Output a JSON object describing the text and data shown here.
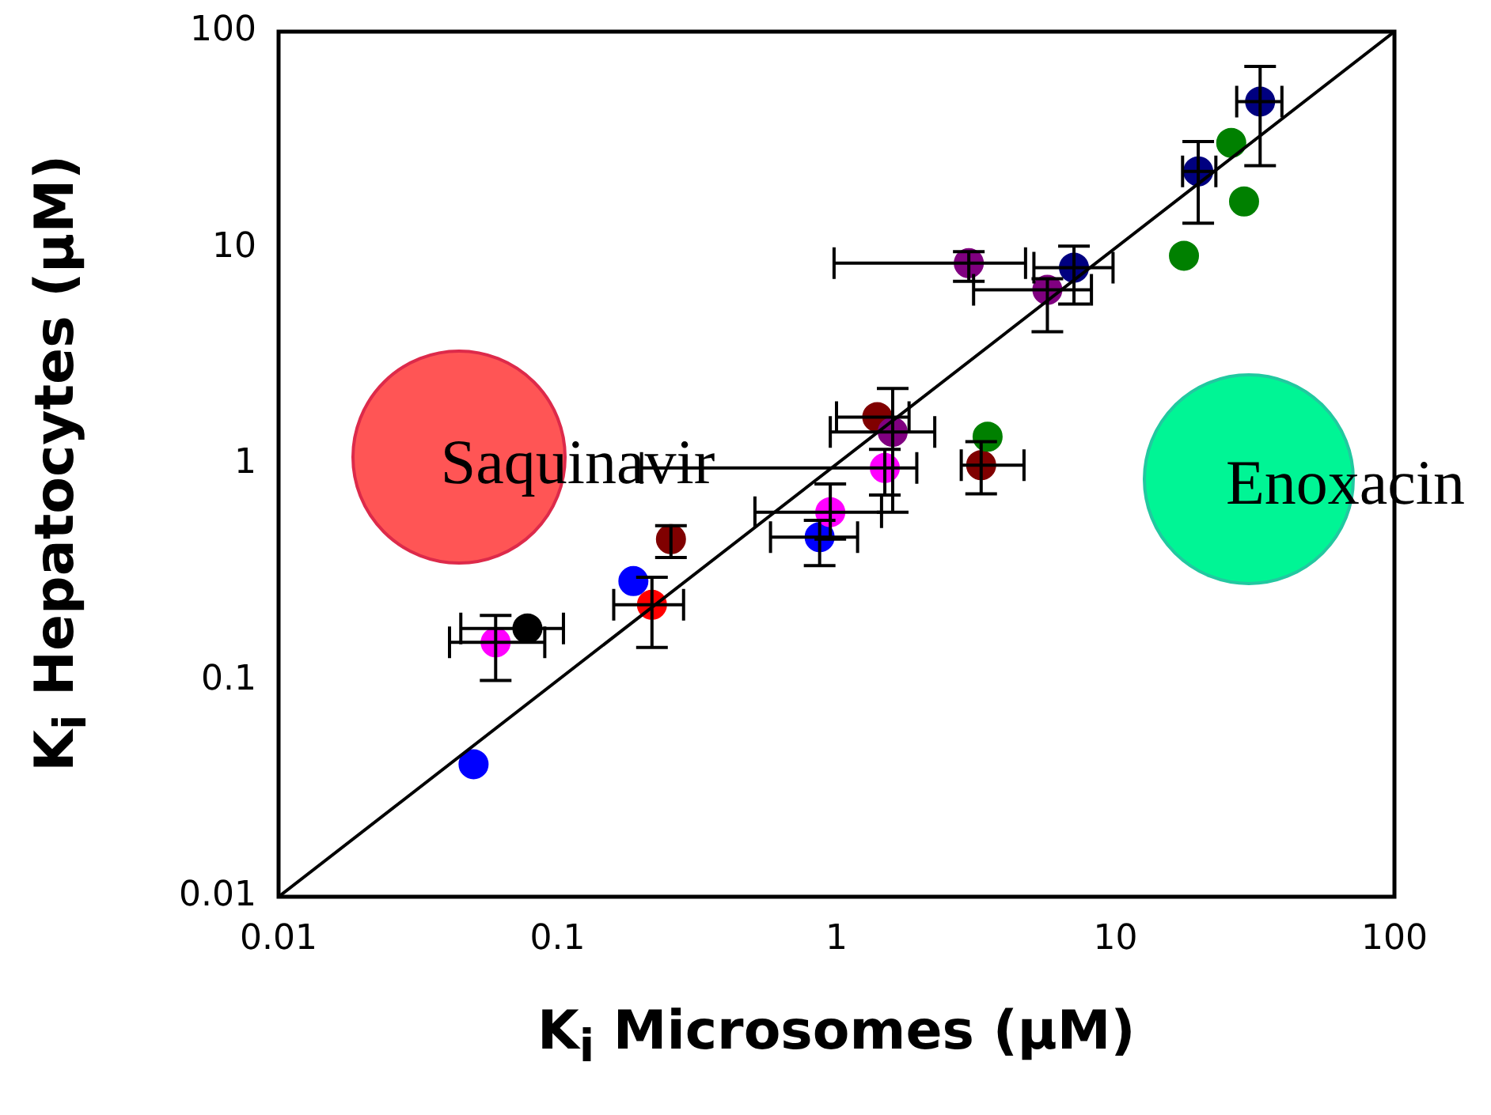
{
  "chart_data": {
    "type": "scatter",
    "xlabel": "K$_{i}$ Microsomes (µM)",
    "ylabel": "K$_{i}$ Hepatocytes (µM)",
    "log": "xy",
    "grid": false,
    "legend": false,
    "xlim": [
      0.01,
      100
    ],
    "ylim": [
      0.01,
      100
    ],
    "xticks": [
      0.01,
      0.1,
      1,
      10,
      100
    ],
    "yticks": [
      0.01,
      0.1,
      1,
      10,
      100
    ],
    "annotations": [
      "Saquinavir",
      "Enoxacin"
    ],
    "series": [
      {
        "type": "line",
        "x": [
          0.01,
          100
        ],
        "values": [
          0.01,
          100
        ],
        "color": "#000000",
        "marker": "none",
        "line_style": "solid"
      },
      {
        "marker": "circle",
        "x": [
          0.05,
          0.06,
          0.078,
          0.187,
          0.218,
          0.255,
          0.87,
          0.95,
          1.4,
          1.49,
          1.59,
          2.98,
          3.3,
          3.48,
          5.7,
          7.1,
          17.6,
          19.8,
          26,
          28.9,
          33
        ],
        "values": [
          0.041,
          0.15,
          0.174,
          0.288,
          0.224,
          0.45,
          0.46,
          0.6,
          1.65,
          0.96,
          1.41,
          8.5,
          0.99,
          1.34,
          6.4,
          8.1,
          9.2,
          22.6,
          30.6,
          16.4,
          47.5
        ],
        "colors": [
          "#0000ff",
          "#ff00ff",
          "#000000",
          "#0000ff",
          "#ff0000",
          "#800000",
          "#0000ff",
          "#ff00ff",
          "#800000",
          "#ff00ff",
          "#800080",
          "#800080",
          "#800000",
          "#008000",
          "#800080",
          "#000080",
          "#008000",
          "#000080",
          "#008000",
          "#008000",
          "#000080"
        ],
        "errors": [
          null,
          [
            0.1,
            0.2
          ],
          null,
          null,
          [
            0.142,
            0.3
          ],
          [
            0.37,
            0.52
          ],
          [
            0.34,
            0.55
          ],
          [
            0.45,
            0.81
          ],
          null,
          [
            0.72,
            1.17
          ],
          [
            0.6,
            2.24
          ],
          [
            7.0,
            9.6
          ],
          [
            0.73,
            1.27
          ],
          null,
          [
            4.1,
            7.2
          ],
          [
            5.5,
            10.2
          ],
          null,
          [
            13,
            31
          ],
          null,
          null,
          [
            24,
            69
          ]
        ],
        "xerrors": [
          null,
          [
            0.041,
            0.09
          ],
          [
            0.045,
            0.105
          ],
          null,
          [
            0.159,
            0.283
          ],
          null,
          [
            0.58,
            1.19
          ],
          [
            0.51,
            1.45
          ],
          [
            1.0,
            1.82
          ],
          [
            0.2,
            1.94
          ],
          [
            0.95,
            2.25
          ],
          [
            0.98,
            4.76
          ],
          [
            2.8,
            4.7
          ],
          null,
          [
            3.1,
            8.2
          ],
          [
            5.1,
            9.8
          ],
          null,
          [
            17.4,
            22.9
          ],
          null,
          null,
          [
            27.2,
            39.5
          ]
        ]
      }
    ]
  }
}
